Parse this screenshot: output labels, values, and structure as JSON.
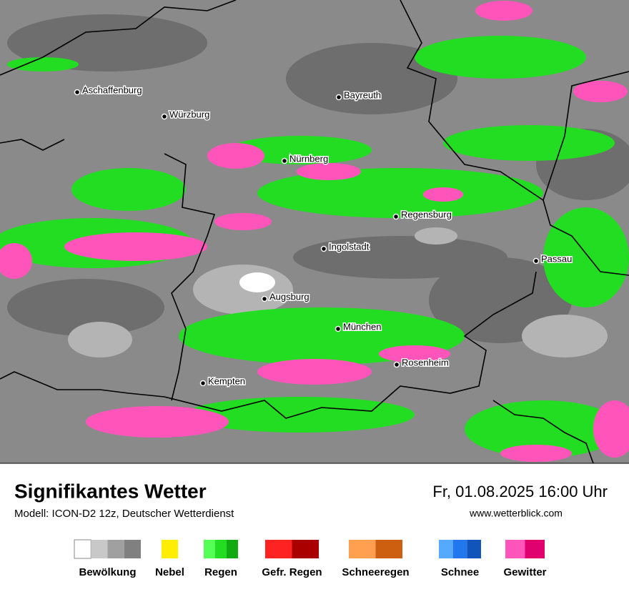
{
  "map": {
    "cities": [
      "Aschaffenburg",
      "Würzburg",
      "Bayreuth",
      "Nürnberg",
      "Regensburg",
      "Ingolstadt",
      "Passau",
      "Augsburg",
      "München",
      "Rosenheim",
      "Kempten"
    ]
  },
  "footer": {
    "title": "Signifikantes Wetter",
    "subtitle": "Modell: ICON-D2 12z, Deutscher Wetterdienst",
    "datetime": "Fr, 01.08.2025 16:00 Uhr",
    "website": "www.wetterblick.com"
  },
  "legend": [
    {
      "label": "Bewölkung",
      "colors": [
        "#ffffff",
        "#c8c8c8",
        "#a0a0a0",
        "#808080"
      ]
    },
    {
      "label": "Nebel",
      "colors": [
        "#ffee00"
      ]
    },
    {
      "label": "Regen",
      "colors": [
        "#55ff55",
        "#22dd22",
        "#11aa11"
      ]
    },
    {
      "label": "Gefr. Regen",
      "colors": [
        "#ff2222",
        "#aa0000"
      ]
    },
    {
      "label": "Schneeregen",
      "colors": [
        "#ffa050",
        "#cc6010"
      ]
    },
    {
      "label": "Schnee",
      "colors": [
        "#55aaff",
        "#2277ee",
        "#1155bb"
      ]
    },
    {
      "label": "Gewitter",
      "colors": [
        "#ff55bb",
        "#e0006e"
      ]
    }
  ]
}
